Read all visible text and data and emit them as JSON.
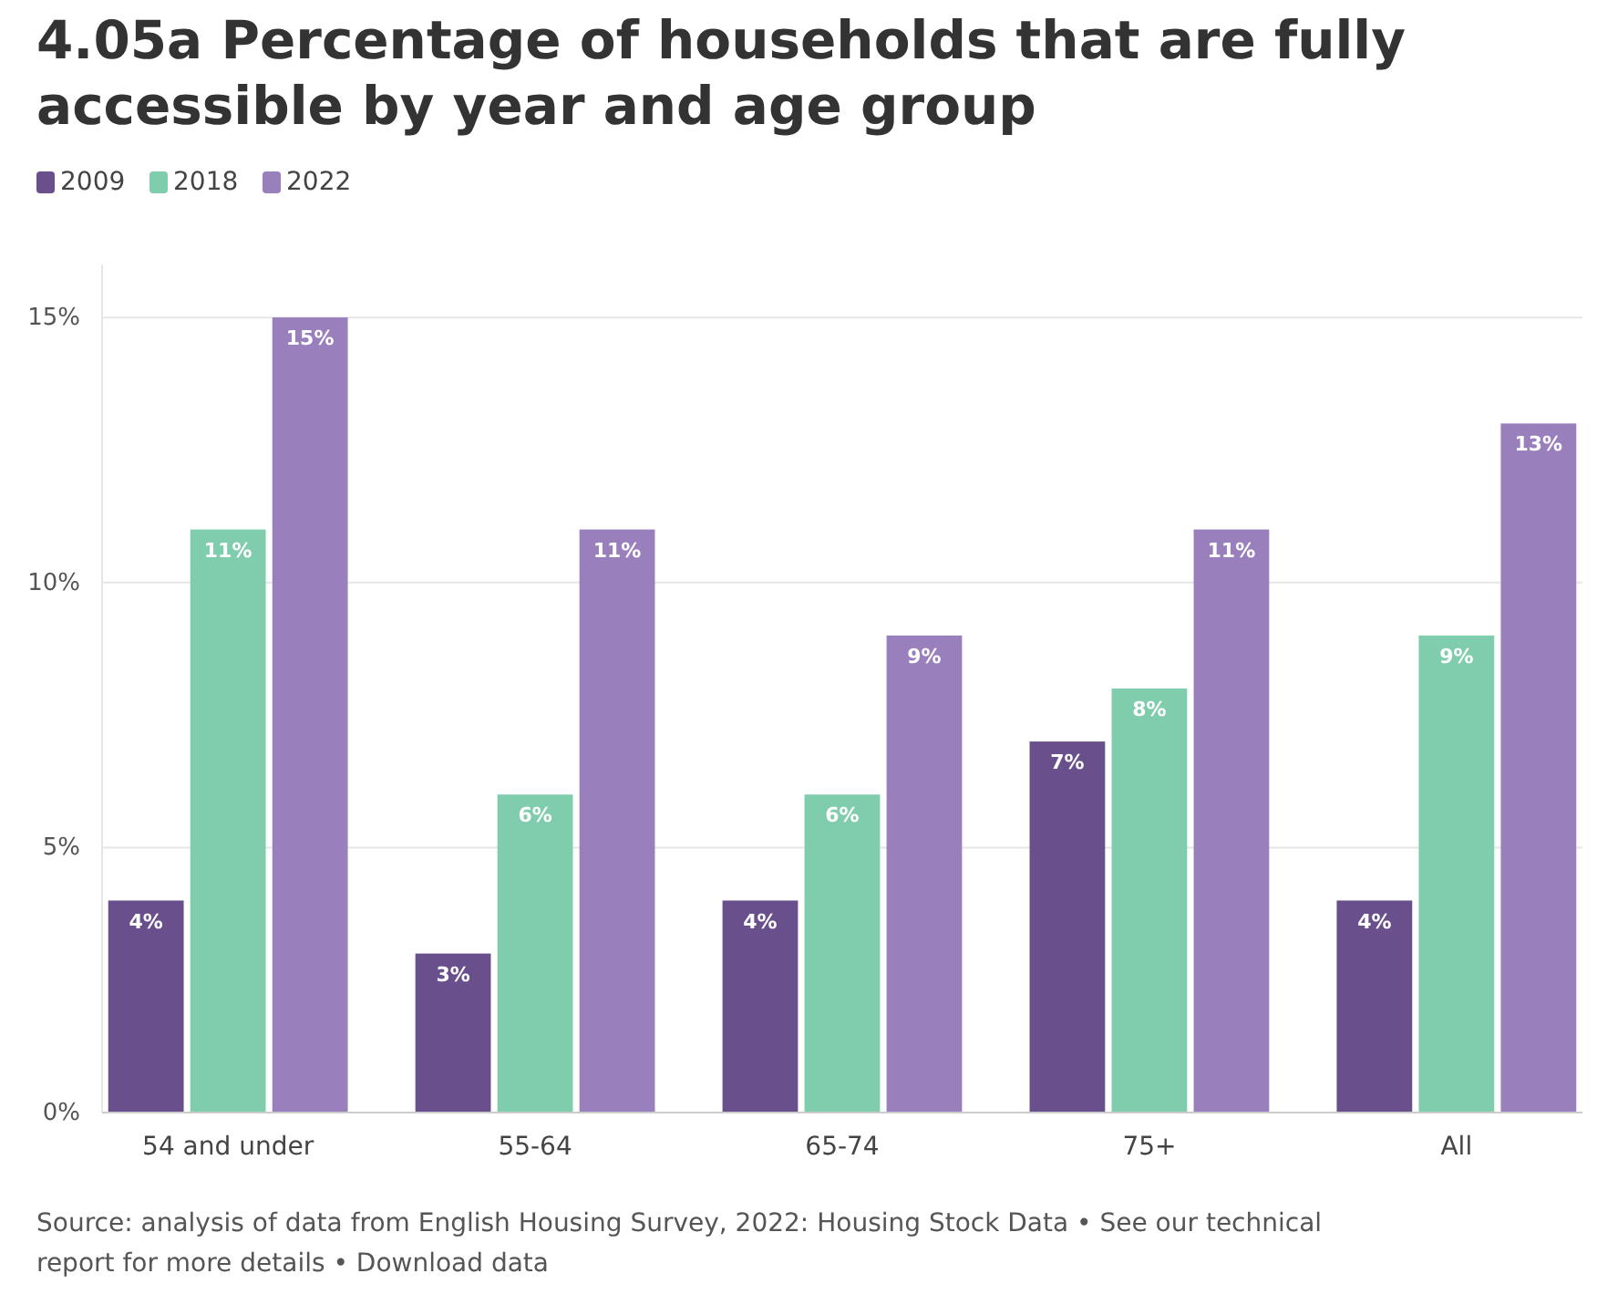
{
  "chart_data": {
    "type": "bar",
    "title": "4.05a Percentage of households that are fully accessible by year and age group",
    "categories": [
      "54 and under",
      "55-64",
      "65-74",
      "75+",
      "All"
    ],
    "series": [
      {
        "name": "2009",
        "color": "#694f8c",
        "values": [
          4,
          3,
          4,
          7,
          4
        ],
        "value_labels": [
          "4%",
          "3%",
          "4%",
          "7%",
          "4%"
        ]
      },
      {
        "name": "2018",
        "color": "#80cdae",
        "values": [
          11,
          6,
          6,
          8,
          9
        ],
        "value_labels": [
          "11%",
          "6%",
          "6%",
          "8%",
          "9%"
        ]
      },
      {
        "name": "2022",
        "color": "#9a7fbd",
        "values": [
          15,
          11,
          9,
          11,
          13
        ],
        "value_labels": [
          "15%",
          "11%",
          "9%",
          "11%",
          "13%"
        ]
      }
    ],
    "ylim": [
      0,
      16
    ],
    "yticks": [
      {
        "value": 0,
        "label": "0%"
      },
      {
        "value": 5,
        "label": "5%"
      },
      {
        "value": 10,
        "label": "10%"
      },
      {
        "value": 15,
        "label": "15%"
      }
    ],
    "grid": "y",
    "legend": "top left",
    "annotations": [
      "Source: analysis of data from English Housing Survey, 2022: Housing Stock Data • See our technical report for more details • Download data"
    ]
  }
}
